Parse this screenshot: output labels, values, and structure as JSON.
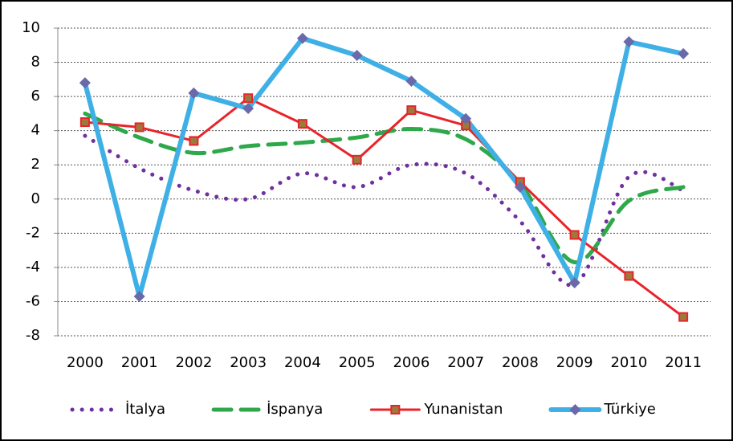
{
  "chart_data": {
    "type": "line",
    "categories": [
      "2000",
      "2001",
      "2002",
      "2003",
      "2004",
      "2005",
      "2006",
      "2007",
      "2008",
      "2009",
      "2010",
      "2011"
    ],
    "series": [
      {
        "name": "İtalya",
        "color": "#7030a0",
        "style": "dotted",
        "smooth": true,
        "marker": null,
        "values": [
          3.7,
          1.8,
          0.5,
          0.0,
          1.5,
          0.7,
          2.0,
          1.5,
          -1.3,
          -5.0,
          1.3,
          0.5
        ]
      },
      {
        "name": "İspanya",
        "color": "#2ea84a",
        "style": "dashed",
        "smooth": true,
        "marker": null,
        "values": [
          5.0,
          3.6,
          2.7,
          3.1,
          3.3,
          3.6,
          4.1,
          3.5,
          0.9,
          -3.7,
          -0.1,
          0.7
        ]
      },
      {
        "name": "Yunanistan",
        "color": "#e8242a",
        "style": "solid",
        "smooth": false,
        "marker": "square",
        "values": [
          4.5,
          4.2,
          3.4,
          5.9,
          4.4,
          2.3,
          5.2,
          4.3,
          1.0,
          -2.1,
          -4.5,
          -6.9
        ]
      },
      {
        "name": "Türkiye",
        "color": "#3fb0e6",
        "style": "solid",
        "smooth": false,
        "marker": "diamond",
        "values": [
          6.8,
          -5.7,
          6.2,
          5.3,
          9.4,
          8.4,
          6.9,
          4.7,
          0.7,
          -4.9,
          9.2,
          8.5
        ]
      }
    ],
    "ylim": [
      -8,
      10
    ],
    "yticks": [
      -8,
      -6,
      -4,
      -2,
      0,
      2,
      4,
      6,
      8,
      10
    ],
    "grid": true,
    "legend": "bottom"
  }
}
